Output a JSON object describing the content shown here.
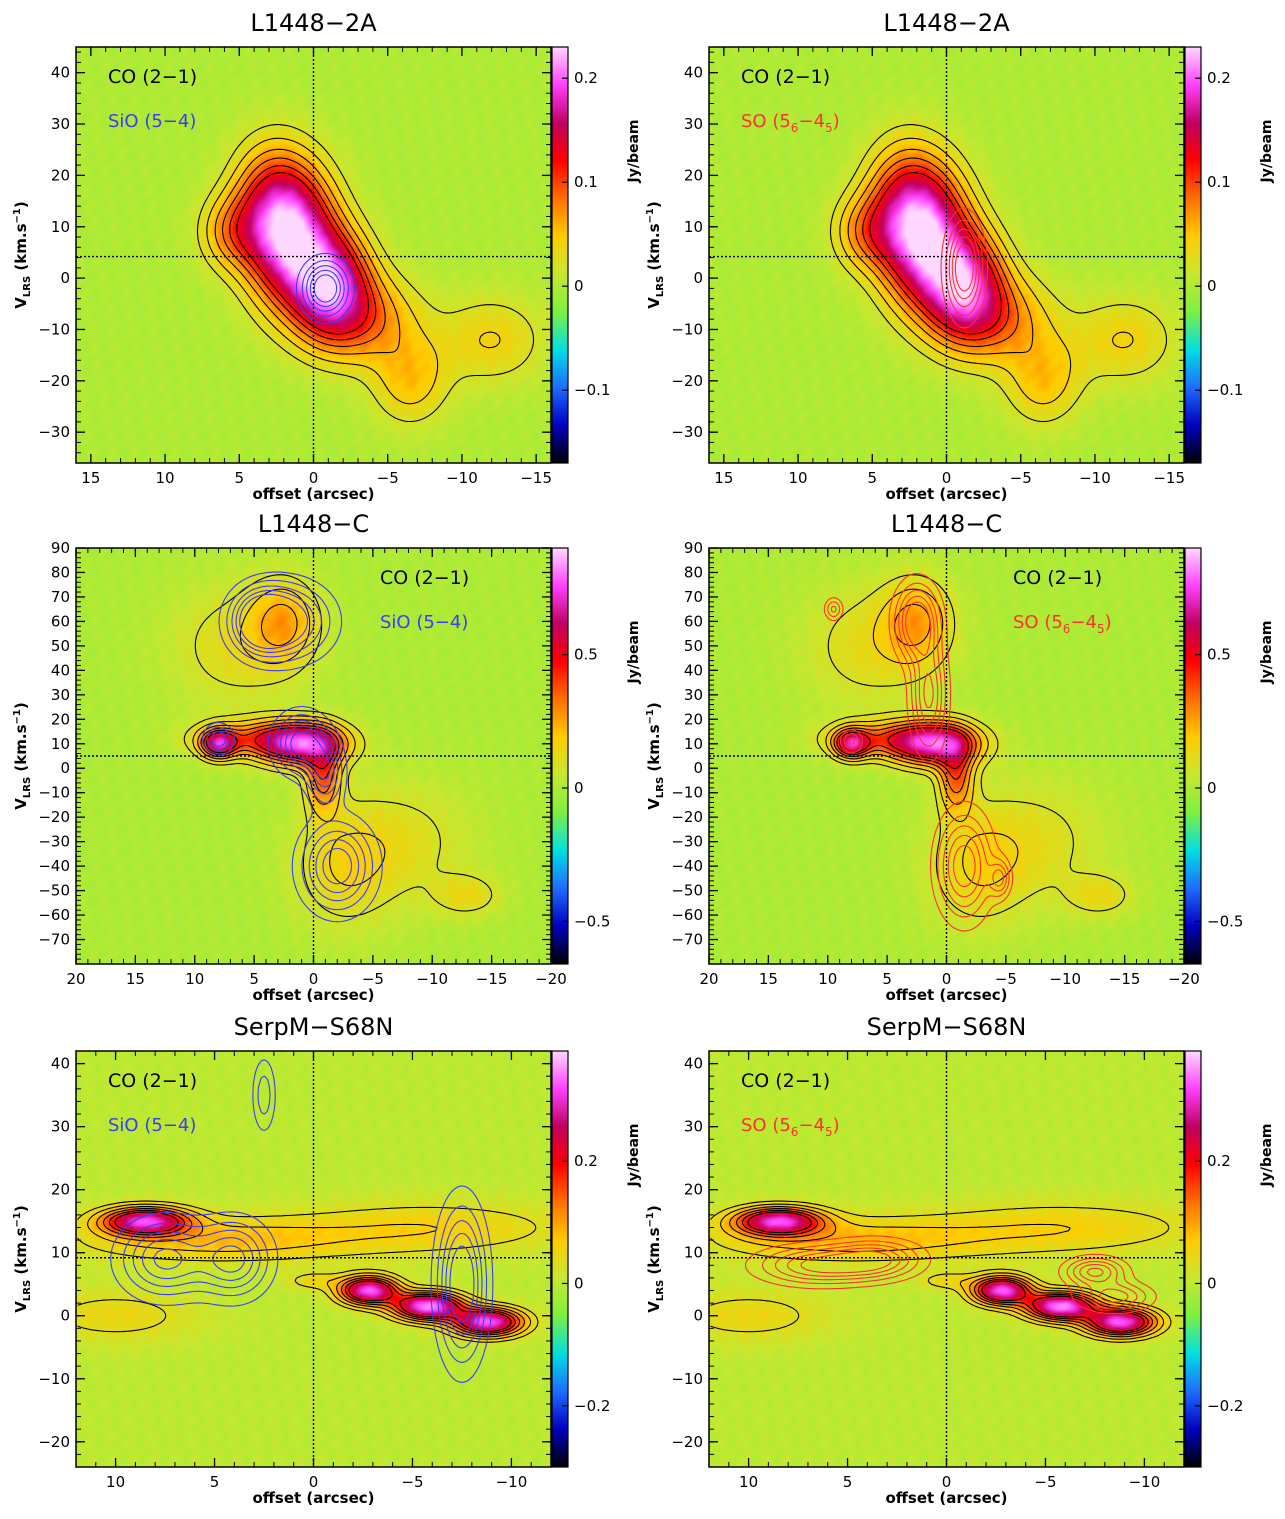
{
  "colors": {
    "colormap_stops": [
      "#000000",
      "#0000c0",
      "#1e6cff",
      "#00e0e0",
      "#7df040",
      "#c8e830",
      "#ffcc00",
      "#ff7000",
      "#ff0000",
      "#c00060",
      "#ff40ff",
      "#ffd8ff"
    ],
    "background": "#7ce84e",
    "co_contour": "#000000",
    "sio_contour": "#3b3bff",
    "so_contour": "#ff3030",
    "dotted_lines": "#000000"
  },
  "chart_data": [
    {
      "type": "heatmap",
      "title": "L1448−2A",
      "xlabel": "offset (arcsec)",
      "ylabel_main": "V",
      "ylabel_sub": "LRS",
      "ylabel_unit": " (km.s",
      "ylabel_exp": "−1",
      "ylabel_close": ")",
      "cbar_label": "Jy/beam",
      "xlim": [
        16,
        -16
      ],
      "ylim": [
        -36,
        45
      ],
      "xticks": [
        15,
        10,
        5,
        0,
        -5,
        -10,
        -15
      ],
      "xticklabels": [
        "15",
        "10",
        "5",
        "0",
        "−5",
        "−10",
        "−15"
      ],
      "yticks": [
        40,
        30,
        20,
        10,
        0,
        -10,
        -20,
        -30
      ],
      "yticklabels": [
        "40",
        "30",
        "20",
        "10",
        "0",
        "−10",
        "−20",
        "−30"
      ],
      "cbar_range": [
        -0.17,
        0.23
      ],
      "cbar_ticks": [
        0.2,
        0.1,
        0,
        -0.1
      ],
      "cbar_ticklabels": [
        "0.2",
        "0.1",
        "0",
        "−0.1"
      ],
      "vsys": 4.2,
      "co_label": "CO (2−1)",
      "tracer": "sio",
      "tracer_label": "SiO (5−4)",
      "legend_position": "top-left",
      "co_blobs": [
        [
          1.5,
          8,
          2.0,
          9,
          0.2
        ],
        [
          -1.2,
          -1.5,
          1.8,
          7,
          0.17
        ],
        [
          5.5,
          9,
          1.5,
          5,
          0.06
        ],
        [
          3.0,
          15,
          1.8,
          8,
          0.07
        ],
        [
          -3.5,
          -8,
          2.5,
          6,
          0.07
        ],
        [
          -6.5,
          -20,
          1.8,
          6,
          0.05
        ],
        [
          -12,
          -12,
          2.5,
          6,
          0.04
        ]
      ],
      "tracer_blobs": [
        [
          -0.8,
          -2,
          1.0,
          3.5,
          1.0
        ]
      ]
    },
    {
      "type": "heatmap",
      "title": "L1448−2A",
      "xlabel": "offset (arcsec)",
      "ylabel_main": "V",
      "ylabel_sub": "LRS",
      "ylabel_unit": " (km.s",
      "ylabel_exp": "−1",
      "ylabel_close": ")",
      "cbar_label": "Jy/beam",
      "xlim": [
        16,
        -16
      ],
      "ylim": [
        -36,
        45
      ],
      "xticks": [
        15,
        10,
        5,
        0,
        -5,
        -10,
        -15
      ],
      "xticklabels": [
        "15",
        "10",
        "5",
        "0",
        "−5",
        "−10",
        "−15"
      ],
      "yticks": [
        40,
        30,
        20,
        10,
        0,
        -10,
        -20,
        -30
      ],
      "yticklabels": [
        "40",
        "30",
        "20",
        "10",
        "0",
        "−10",
        "−20",
        "−30"
      ],
      "cbar_range": [
        -0.17,
        0.23
      ],
      "cbar_ticks": [
        0.2,
        0.1,
        0,
        -0.1
      ],
      "cbar_ticklabels": [
        "0.2",
        "0.1",
        "0",
        "−0.1"
      ],
      "vsys": 4.2,
      "co_label": "CO (2−1)",
      "tracer": "so",
      "tracer_main": "SO (5",
      "tracer_sub1": "6",
      "tracer_mid": "−4",
      "tracer_sub2": "5",
      "tracer_close": ")",
      "legend_position": "top-left",
      "co_blobs": [
        [
          1.5,
          8,
          2.0,
          9,
          0.2
        ],
        [
          -1.2,
          -1.5,
          1.8,
          7,
          0.17
        ],
        [
          5.5,
          9,
          1.5,
          5,
          0.06
        ],
        [
          3.0,
          15,
          1.8,
          8,
          0.07
        ],
        [
          -3.5,
          -8,
          2.5,
          6,
          0.07
        ],
        [
          -6.5,
          -20,
          1.8,
          6,
          0.05
        ],
        [
          -12,
          -12,
          2.5,
          6,
          0.04
        ]
      ],
      "tracer_blobs": [
        [
          -1.2,
          2,
          0.8,
          6,
          1.0
        ]
      ]
    },
    {
      "type": "heatmap",
      "title": "L1448−C",
      "xlabel": "offset (arcsec)",
      "ylabel_main": "V",
      "ylabel_sub": "LRS",
      "ylabel_unit": " (km.s",
      "ylabel_exp": "−1",
      "ylabel_close": ")",
      "cbar_label": "Jy/beam",
      "xlim": [
        20,
        -20
      ],
      "ylim": [
        -80,
        90
      ],
      "xticks": [
        20,
        15,
        10,
        5,
        0,
        -5,
        -10,
        -15,
        -20
      ],
      "xticklabels": [
        "20",
        "15",
        "10",
        "5",
        "0",
        "−5",
        "−10",
        "−15",
        "−20"
      ],
      "yticks": [
        90,
        80,
        70,
        60,
        50,
        40,
        30,
        20,
        10,
        0,
        -10,
        -20,
        -30,
        -40,
        -50,
        -60,
        -70
      ],
      "yticklabels": [
        "90",
        "80",
        "70",
        "60",
        "50",
        "40",
        "30",
        "20",
        "10",
        "0",
        "−10",
        "−20",
        "−30",
        "−40",
        "−50",
        "−60",
        "−70"
      ],
      "cbar_range": [
        -0.66,
        0.9
      ],
      "cbar_ticks": [
        0.5,
        0,
        -0.5
      ],
      "cbar_ticklabels": [
        "0.5",
        "0",
        "−0.5"
      ],
      "vsys": 5,
      "co_label": "CO (2−1)",
      "tracer": "sio",
      "tracer_label": "SiO (5−4)",
      "legend_position": "top-right",
      "co_blobs": [
        [
          1.0,
          10,
          2.5,
          6,
          0.65
        ],
        [
          5.0,
          12,
          3.5,
          5,
          0.28
        ],
        [
          8.0,
          10,
          1.0,
          4,
          0.55
        ],
        [
          2.5,
          60,
          2.0,
          12,
          0.22
        ],
        [
          6.5,
          50,
          4.0,
          18,
          0.12
        ],
        [
          -0.8,
          -3,
          1.0,
          10,
          0.35
        ],
        [
          -2.5,
          -40,
          3.0,
          18,
          0.14
        ],
        [
          -8.0,
          -30,
          4.0,
          18,
          0.1
        ],
        [
          -13,
          -52,
          2.0,
          6,
          0.12
        ]
      ],
      "tracer_blobs": [
        [
          2.5,
          60,
          2.5,
          10,
          1.0
        ],
        [
          4.5,
          60,
          1.5,
          8,
          0.8
        ],
        [
          1.0,
          10,
          1.5,
          8,
          0.9
        ],
        [
          -2.0,
          -40,
          2.0,
          12,
          0.9
        ],
        [
          -1.0,
          -2,
          1.0,
          8,
          0.7
        ],
        [
          8.0,
          12,
          0.8,
          4,
          0.6
        ]
      ]
    },
    {
      "type": "heatmap",
      "title": "L1448−C",
      "xlabel": "offset (arcsec)",
      "ylabel_main": "V",
      "ylabel_sub": "LRS",
      "ylabel_unit": " (km.s",
      "ylabel_exp": "−1",
      "ylabel_close": ")",
      "cbar_label": "Jy/beam",
      "xlim": [
        20,
        -20
      ],
      "ylim": [
        -80,
        90
      ],
      "xticks": [
        20,
        15,
        10,
        5,
        0,
        -5,
        -10,
        -15,
        -20
      ],
      "xticklabels": [
        "20",
        "15",
        "10",
        "5",
        "0",
        "−5",
        "−10",
        "−15",
        "−20"
      ],
      "yticks": [
        90,
        80,
        70,
        60,
        50,
        40,
        30,
        20,
        10,
        0,
        -10,
        -20,
        -30,
        -40,
        -50,
        -60,
        -70
      ],
      "yticklabels": [
        "90",
        "80",
        "70",
        "60",
        "50",
        "40",
        "30",
        "20",
        "10",
        "0",
        "−10",
        "−20",
        "−30",
        "−40",
        "−50",
        "−60",
        "−70"
      ],
      "cbar_range": [
        -0.66,
        0.9
      ],
      "cbar_ticks": [
        0.5,
        0,
        -0.5
      ],
      "cbar_ticklabels": [
        "0.5",
        "0",
        "−0.5"
      ],
      "vsys": 5,
      "co_label": "CO (2−1)",
      "tracer": "so",
      "tracer_main": "SO (5",
      "tracer_sub1": "6",
      "tracer_mid": "−4",
      "tracer_sub2": "5",
      "tracer_close": ")",
      "legend_position": "top-right",
      "co_blobs": [
        [
          1.0,
          10,
          2.5,
          6,
          0.65
        ],
        [
          5.0,
          12,
          3.5,
          5,
          0.28
        ],
        [
          8.0,
          10,
          1.0,
          4,
          0.55
        ],
        [
          2.5,
          60,
          2.0,
          12,
          0.22
        ],
        [
          6.5,
          50,
          4.0,
          18,
          0.12
        ],
        [
          -0.8,
          -3,
          1.0,
          10,
          0.35
        ],
        [
          -2.5,
          -40,
          3.0,
          18,
          0.14
        ],
        [
          -8.0,
          -30,
          4.0,
          18,
          0.1
        ],
        [
          -13,
          -52,
          2.0,
          6,
          0.12
        ]
      ],
      "tracer_blobs": [
        [
          2.5,
          60,
          1.2,
          10,
          1.0
        ],
        [
          1.5,
          30,
          1.0,
          15,
          0.8
        ],
        [
          -1.5,
          -40,
          1.5,
          14,
          0.9
        ],
        [
          -4.5,
          -45,
          0.6,
          5,
          0.6
        ],
        [
          9.5,
          65,
          0.5,
          3,
          0.5
        ],
        [
          8.0,
          11,
          0.6,
          3,
          0.5
        ]
      ]
    },
    {
      "type": "heatmap",
      "title": "SerpM−S68N",
      "xlabel": "offset (arcsec)",
      "ylabel_main": "V",
      "ylabel_sub": "LRS",
      "ylabel_unit": " (km.s",
      "ylabel_exp": "−1",
      "ylabel_close": ")",
      "cbar_label": "Jy/beam",
      "xlim": [
        12,
        -12
      ],
      "ylim": [
        -24,
        42
      ],
      "xticks": [
        10,
        5,
        0,
        -5,
        -10
      ],
      "xticklabels": [
        "10",
        "5",
        "0",
        "−5",
        "−10"
      ],
      "yticks": [
        40,
        30,
        20,
        10,
        0,
        -10,
        -20
      ],
      "yticklabels": [
        "40",
        "30",
        "20",
        "10",
        "0",
        "−10",
        "−20"
      ],
      "cbar_range": [
        -0.3,
        0.38
      ],
      "cbar_ticks": [
        0.2,
        0,
        -0.2
      ],
      "cbar_ticklabels": [
        "0.2",
        "0",
        "−0.2"
      ],
      "vsys": 9.2,
      "co_label": "CO (2−1)",
      "tracer": "sio",
      "tracer_label": "SiO (5−4)",
      "legend_position": "top-left",
      "co_blobs": [
        [
          8.5,
          15,
          1.5,
          1.5,
          0.3
        ],
        [
          5.0,
          12,
          5.0,
          2.5,
          0.08
        ],
        [
          10.0,
          0,
          3.0,
          3,
          0.05
        ],
        [
          -2.8,
          4,
          1.0,
          1.5,
          0.33
        ],
        [
          -5.8,
          1.5,
          1.2,
          1.5,
          0.35
        ],
        [
          -8.8,
          -1,
          1.2,
          1.5,
          0.33
        ],
        [
          -6.0,
          14,
          5.0,
          3.0,
          0.06
        ],
        [
          0.0,
          5.5,
          1.0,
          1.0,
          0.05
        ]
      ],
      "tracer_blobs": [
        [
          7.5,
          9,
          1.5,
          4,
          0.8
        ],
        [
          4.0,
          9,
          1.2,
          4,
          0.8
        ],
        [
          -7.5,
          5,
          0.8,
          8,
          1.0
        ],
        [
          2.5,
          35,
          0.4,
          4,
          0.4
        ]
      ]
    },
    {
      "type": "heatmap",
      "title": "SerpM−S68N",
      "xlabel": "offset (arcsec)",
      "ylabel_main": "V",
      "ylabel_sub": "LRS",
      "ylabel_unit": " (km.s",
      "ylabel_exp": "−1",
      "ylabel_close": ")",
      "cbar_label": "Jy/beam",
      "xlim": [
        12,
        -12
      ],
      "ylim": [
        -24,
        42
      ],
      "xticks": [
        10,
        5,
        0,
        -5,
        -10
      ],
      "xticklabels": [
        "10",
        "5",
        "0",
        "−5",
        "−10"
      ],
      "yticks": [
        40,
        30,
        20,
        10,
        0,
        -10,
        -20
      ],
      "yticklabels": [
        "40",
        "30",
        "20",
        "10",
        "0",
        "−10",
        "−20"
      ],
      "cbar_range": [
        -0.3,
        0.38
      ],
      "cbar_ticks": [
        0.2,
        0,
        -0.2
      ],
      "cbar_ticklabels": [
        "0.2",
        "0",
        "−0.2"
      ],
      "vsys": 9.2,
      "co_label": "CO (2−1)",
      "tracer": "so",
      "tracer_main": "SO (5",
      "tracer_sub1": "6",
      "tracer_mid": "−4",
      "tracer_sub2": "5",
      "tracer_close": ")",
      "legend_position": "top-left",
      "co_blobs": [
        [
          8.5,
          15,
          1.5,
          1.5,
          0.3
        ],
        [
          5.0,
          12,
          5.0,
          2.5,
          0.08
        ],
        [
          10.0,
          0,
          3.0,
          3,
          0.05
        ],
        [
          -2.8,
          4,
          1.0,
          1.5,
          0.33
        ],
        [
          -5.8,
          1.5,
          1.2,
          1.5,
          0.35
        ],
        [
          -8.8,
          -1,
          1.2,
          1.5,
          0.33
        ],
        [
          -6.0,
          14,
          5.0,
          3.0,
          0.06
        ],
        [
          0.0,
          5.5,
          1.0,
          1.0,
          0.05
        ]
      ],
      "tracer_blobs": [
        [
          6.5,
          8,
          2.0,
          2,
          0.8
        ],
        [
          3.5,
          9,
          1.5,
          2,
          0.7
        ],
        [
          -7.5,
          7,
          1.0,
          1.5,
          0.8
        ],
        [
          -8.5,
          3,
          1.2,
          1.5,
          0.7
        ]
      ]
    }
  ]
}
